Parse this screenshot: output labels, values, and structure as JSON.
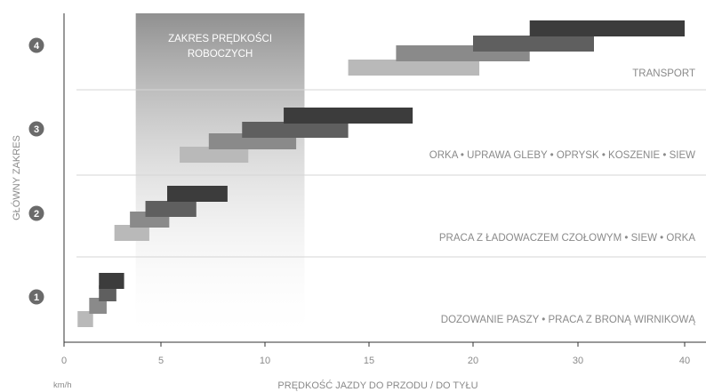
{
  "chart_data": {
    "type": "range-bar",
    "xlabel": "PRĘDKOŚĆ JAZDY DO PRZODU / DO TYŁU",
    "xunit": "km/h",
    "ylabel": "GŁÓWNY ZAKRES",
    "xlim": [
      0,
      41
    ],
    "xticks": [
      "0",
      "5",
      "10",
      "15",
      "20",
      "30",
      "40"
    ],
    "working_band": {
      "label_line1": "ZAKRES PRĘDKOŚCI",
      "label_line2": "ROBOCZYCH",
      "x_from": 3.7,
      "x_to": 11.9
    },
    "ranges": [
      {
        "number": "1",
        "label": "DOZOWANIE PASZY • PRACA Z BRONĄ WIRNIKOWĄ",
        "bars": [
          [
            0.7,
            1.5
          ],
          [
            1.3,
            2.2
          ],
          [
            1.8,
            2.7
          ],
          [
            1.8,
            3.1
          ]
        ]
      },
      {
        "number": "2",
        "label": "PRACA Z ŁADOWACZEM CZOŁOWYM • SIEW • ORKA",
        "bars": [
          [
            2.6,
            4.4
          ],
          [
            3.4,
            5.4
          ],
          [
            4.2,
            6.7
          ],
          [
            5.3,
            8.2
          ]
        ]
      },
      {
        "number": "3",
        "label": "ORKA • UPRAWA GLEBY • OPRYSK • KOSZENIE • SIEW",
        "bars": [
          [
            5.9,
            9.2
          ],
          [
            7.3,
            11.5
          ],
          [
            8.9,
            14.0
          ],
          [
            10.9,
            17.1
          ]
        ]
      },
      {
        "number": "4",
        "label": "TRANSPORT",
        "bars": [
          [
            14.0,
            20.6
          ],
          [
            16.3,
            25.4
          ],
          [
            20.0,
            31.5
          ],
          [
            25.4,
            40.0
          ]
        ]
      }
    ],
    "colors": [
      "#b9b9b9",
      "#8a8a8a",
      "#5f5f5f",
      "#3c3c3c"
    ]
  }
}
